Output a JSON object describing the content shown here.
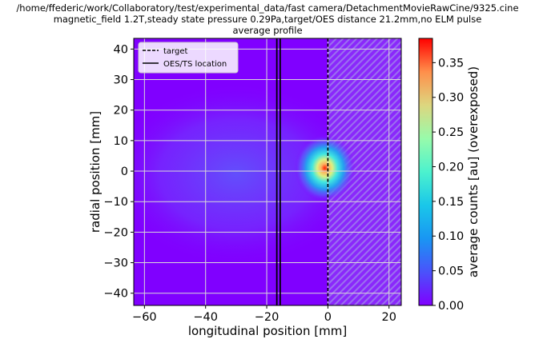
{
  "chart_data": {
    "type": "heatmap",
    "title_lines": [
      "/home/ffederic/work/Collaboratory/test/experimental_data/fast camera/DetachmentMovieRawCine/9325.cine",
      "magnetic_field 1.2T,steady state pressure 0.29Pa,target/OES distance 21.2mm,no ELM pulse",
      "average profile"
    ],
    "xlabel": "longitudinal position [mm]",
    "ylabel": "radial position [mm]",
    "xlim": [
      -63.5,
      24
    ],
    "ylim": [
      -44,
      43.5
    ],
    "x_ticks": [
      -60,
      -40,
      -20,
      0,
      20
    ],
    "x_tick_labels": [
      "−60",
      "−40",
      "−20",
      "0",
      "20"
    ],
    "y_ticks": [
      40,
      30,
      20,
      10,
      0,
      -10,
      -20,
      -30,
      -40
    ],
    "y_tick_labels": [
      "40",
      "30",
      "20",
      "10",
      "0",
      "−10",
      "−20",
      "−30",
      "−40"
    ],
    "grid": true,
    "colormap": "rainbow",
    "colorbar": {
      "label": "average counts [au] (overexposed)",
      "min": 0.0,
      "max": 0.385,
      "ticks": [
        0.0,
        0.05,
        0.1,
        0.15,
        0.2,
        0.25,
        0.3,
        0.35
      ],
      "tick_labels": [
        "0.00",
        "0.05",
        "0.10",
        "0.15",
        "0.20",
        "0.25",
        "0.30",
        "0.35"
      ]
    },
    "lines": [
      {
        "name": "target",
        "style": "dashed",
        "x": 0.0
      },
      {
        "name": "OES/TS location",
        "style": "solid",
        "x": [
          -16.7,
          -15.6
        ]
      }
    ],
    "hotspot": {
      "x": -1.0,
      "y": 1.0,
      "peak": 0.385
    },
    "legend_position": "upper left",
    "colors": {
      "background_low": "#8000ff",
      "grid": "#d9d9d9",
      "hatch": "#9a79ec"
    }
  }
}
